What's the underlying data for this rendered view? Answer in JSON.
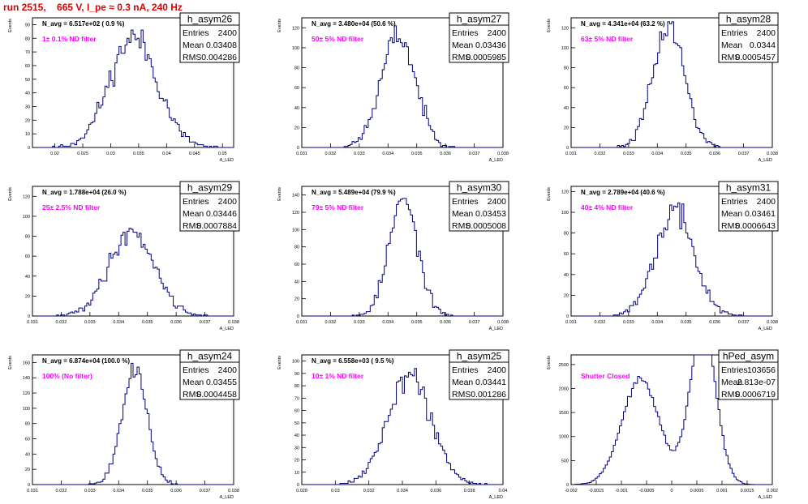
{
  "run_title": "run 2515,    665 V, I_pe ≈ 0.3 nA, 240 Hz",
  "ylabel": "Events",
  "colors": {
    "line": "#000080",
    "filter_label": "#ff00ff",
    "title": "#e00000"
  },
  "chart_data": [
    {
      "type": "histogram",
      "name": "h_asym26",
      "navg": "N_avg = 6.517e+02 ( 0.9 %)",
      "filter": "1± 0.1% ND filter",
      "stats": {
        "entries_label": "Entries",
        "entries": "2400",
        "mean_label": "Mean",
        "mean": "0.03408",
        "rms_label": "RMS",
        "rms": "0.004286"
      },
      "xlabel": "A_LED",
      "xlim": [
        0.016,
        0.052
      ],
      "xticks": [
        0.02,
        0.025,
        0.03,
        0.035,
        0.04,
        0.045,
        0.05
      ],
      "xticklabels": [
        "0.02",
        "0.025",
        "0.03",
        "0.035",
        "0.04",
        "0.045",
        "0.05"
      ],
      "ylim": [
        0,
        95
      ],
      "yticks": [
        0,
        10,
        20,
        30,
        40,
        50,
        60,
        70,
        80,
        90
      ],
      "yticklabels": [
        "0",
        "10",
        "20",
        "30",
        "40",
        "50",
        "60",
        "70",
        "80",
        "90"
      ],
      "mean_value": 0.03408,
      "rms_value": 0.004286,
      "entries_value": 2400,
      "peaks": [
        {
          "mu": 0.03408,
          "sigma": 0.004286,
          "w": 1
        }
      ],
      "nbins": 100,
      "seed": 11
    },
    {
      "type": "histogram",
      "name": "h_asym27",
      "navg": "N_avg = 3.480e+04 (50.6 %)",
      "filter": "50± 5% ND filter",
      "stats": {
        "entries_label": "Entries",
        "entries": "2400",
        "mean_label": "Mean",
        "mean": "0.03436",
        "rms_label": "RMS",
        "rms": "0.0005985"
      },
      "xlabel": "A_LED",
      "xlim": [
        0.031,
        0.038
      ],
      "xticks": [
        0.031,
        0.032,
        0.033,
        0.034,
        0.035,
        0.036,
        0.037,
        0.038
      ],
      "xticklabels": [
        "0.031",
        "0.032",
        "0.033",
        "0.034",
        "0.035",
        "0.036",
        "0.037",
        "0.038"
      ],
      "ylim": [
        0,
        130
      ],
      "yticks": [
        0,
        20,
        40,
        60,
        80,
        100,
        120
      ],
      "yticklabels": [
        "0",
        "20",
        "40",
        "60",
        "80",
        "100",
        "120"
      ],
      "mean_value": 0.03436,
      "rms_value": 0.0005985,
      "entries_value": 2400,
      "peaks": [
        {
          "mu": 0.03436,
          "sigma": 0.0005985,
          "w": 1
        }
      ],
      "nbins": 100,
      "seed": 23
    },
    {
      "type": "histogram",
      "name": "h_asym28",
      "navg": "N_avg = 4.341e+04 (63.2 %)",
      "filter": "63± 5% ND filter",
      "stats": {
        "entries_label": "Entries",
        "entries": "2400",
        "mean_label": "Mean",
        "mean": "0.0344",
        "rms_label": "RMS",
        "rms": "0.0005457"
      },
      "xlabel": "A_LED",
      "xlim": [
        0.031,
        0.038
      ],
      "xticks": [
        0.031,
        0.032,
        0.033,
        0.034,
        0.035,
        0.036,
        0.037,
        0.038
      ],
      "xticklabels": [
        "0.031",
        "0.032",
        "0.033",
        "0.034",
        "0.035",
        "0.036",
        "0.037",
        "0.038"
      ],
      "ylim": [
        0,
        130
      ],
      "yticks": [
        0,
        20,
        40,
        60,
        80,
        100,
        120
      ],
      "yticklabels": [
        "0",
        "20",
        "40",
        "60",
        "80",
        "100",
        "120"
      ],
      "mean_value": 0.0344,
      "rms_value": 0.0005457,
      "entries_value": 2400,
      "peaks": [
        {
          "mu": 0.0344,
          "sigma": 0.0005457,
          "w": 1
        }
      ],
      "nbins": 100,
      "seed": 37
    },
    {
      "type": "histogram",
      "name": "h_asym29",
      "navg": "N_avg = 1.788e+04 (26.0 %)",
      "filter": "25± 2.5% ND filter",
      "stats": {
        "entries_label": "Entries",
        "entries": "2400",
        "mean_label": "Mean",
        "mean": "0.03446",
        "rms_label": "RMS",
        "rms": "0.0007884"
      },
      "xlabel": "A_LED",
      "xlim": [
        0.031,
        0.038
      ],
      "xticks": [
        0.031,
        0.032,
        0.033,
        0.034,
        0.035,
        0.036,
        0.037,
        0.038
      ],
      "xticklabels": [
        "0.031",
        "0.032",
        "0.033",
        "0.034",
        "0.035",
        "0.036",
        "0.037",
        "0.038"
      ],
      "ylim": [
        0,
        130
      ],
      "yticks": [
        0,
        20,
        40,
        60,
        80,
        100,
        120
      ],
      "yticklabels": [
        "0",
        "20",
        "40",
        "60",
        "80",
        "100",
        "120"
      ],
      "mean_value": 0.03446,
      "rms_value": 0.0007884,
      "entries_value": 2400,
      "peaks": [
        {
          "mu": 0.03446,
          "sigma": 0.0007884,
          "w": 1
        }
      ],
      "nbins": 100,
      "seed": 41
    },
    {
      "type": "histogram",
      "name": "h_asym30",
      "navg": "N_avg = 5.489e+04 (79.9 %)",
      "filter": "79± 5% ND filter",
      "stats": {
        "entries_label": "Entries",
        "entries": "2400",
        "mean_label": "Mean",
        "mean": "0.03453",
        "rms_label": "RMS",
        "rms": "0.0005008"
      },
      "xlabel": "A_LED",
      "xlim": [
        0.031,
        0.038
      ],
      "xticks": [
        0.031,
        0.032,
        0.033,
        0.034,
        0.035,
        0.036,
        0.037,
        0.038
      ],
      "xticklabels": [
        "0.031",
        "0.032",
        "0.033",
        "0.034",
        "0.035",
        "0.036",
        "0.037",
        "0.038"
      ],
      "ylim": [
        0,
        150
      ],
      "yticks": [
        0,
        20,
        40,
        60,
        80,
        100,
        120,
        140
      ],
      "yticklabels": [
        "0",
        "20",
        "40",
        "60",
        "80",
        "100",
        "120",
        "140"
      ],
      "mean_value": 0.03453,
      "rms_value": 0.0005008,
      "entries_value": 2400,
      "peaks": [
        {
          "mu": 0.03453,
          "sigma": 0.0005008,
          "w": 1
        }
      ],
      "nbins": 100,
      "seed": 53
    },
    {
      "type": "histogram",
      "name": "h_asym31",
      "navg": "N_avg = 2.789e+04 (40.6 %)",
      "filter": "40± 4% ND filter",
      "stats": {
        "entries_label": "Entries",
        "entries": "2400",
        "mean_label": "Mean",
        "mean": "0.03461",
        "rms_label": "RMS",
        "rms": "0.0006643"
      },
      "xlabel": "A_LED",
      "xlim": [
        0.031,
        0.038
      ],
      "xticks": [
        0.031,
        0.032,
        0.033,
        0.034,
        0.035,
        0.036,
        0.037,
        0.038
      ],
      "xticklabels": [
        "0.031",
        "0.032",
        "0.033",
        "0.034",
        "0.035",
        "0.036",
        "0.037",
        "0.038"
      ],
      "ylim": [
        0,
        125
      ],
      "yticks": [
        0,
        20,
        40,
        60,
        80,
        100,
        120
      ],
      "yticklabels": [
        "0",
        "20",
        "40",
        "60",
        "80",
        "100",
        "120"
      ],
      "mean_value": 0.03461,
      "rms_value": 0.0006643,
      "entries_value": 2400,
      "peaks": [
        {
          "mu": 0.03461,
          "sigma": 0.0006643,
          "w": 1
        }
      ],
      "nbins": 100,
      "seed": 67
    },
    {
      "type": "histogram",
      "name": "h_asym24",
      "navg": "N_avg = 6.874e+04 (100.0 %)",
      "filter": "100% (No filter)",
      "stats": {
        "entries_label": "Entries",
        "entries": "2400",
        "mean_label": "Mean",
        "mean": "0.03455",
        "rms_label": "RMS",
        "rms": "0.0004458"
      },
      "xlabel": "A_LED",
      "xlim": [
        0.031,
        0.038
      ],
      "xticks": [
        0.031,
        0.032,
        0.033,
        0.034,
        0.035,
        0.036,
        0.037,
        0.038
      ],
      "xticklabels": [
        "0.031",
        "0.032",
        "0.033",
        "0.034",
        "0.035",
        "0.036",
        "0.037",
        "0.038"
      ],
      "ylim": [
        0,
        170
      ],
      "yticks": [
        0,
        20,
        40,
        60,
        80,
        100,
        120,
        140,
        160
      ],
      "yticklabels": [
        "0",
        "20",
        "40",
        "60",
        "80",
        "100",
        "120",
        "140",
        "160"
      ],
      "mean_value": 0.03455,
      "rms_value": 0.0004458,
      "entries_value": 2400,
      "peaks": [
        {
          "mu": 0.03455,
          "sigma": 0.0004458,
          "w": 1
        }
      ],
      "nbins": 100,
      "seed": 79
    },
    {
      "type": "histogram",
      "name": "h_asym25",
      "navg": "N_avg = 6.558e+03 ( 9.5 %)",
      "filter": "10± 1% ND filter",
      "stats": {
        "entries_label": "Entries",
        "entries": "2400",
        "mean_label": "Mean",
        "mean": "0.03441",
        "rms_label": "RMS",
        "rms": "0.001286"
      },
      "xlabel": "A_LED",
      "xlim": [
        0.028,
        0.04
      ],
      "xticks": [
        0.028,
        0.03,
        0.032,
        0.034,
        0.036,
        0.038,
        0.04
      ],
      "xticklabels": [
        "0.028",
        "0.03",
        "0.032",
        "0.034",
        "0.036",
        "0.038",
        "0.04"
      ],
      "ylim": [
        0,
        105
      ],
      "yticks": [
        0,
        10,
        20,
        30,
        40,
        50,
        60,
        70,
        80,
        90,
        100
      ],
      "yticklabels": [
        "0",
        "10",
        "20",
        "30",
        "40",
        "50",
        "60",
        "70",
        "80",
        "90",
        "100"
      ],
      "mean_value": 0.03441,
      "rms_value": 0.001286,
      "entries_value": 2400,
      "peaks": [
        {
          "mu": 0.03441,
          "sigma": 0.001286,
          "w": 1
        }
      ],
      "nbins": 100,
      "seed": 89
    },
    {
      "type": "histogram",
      "name": "hPed_asym",
      "navg": "",
      "filter": "Shutter Closed",
      "stats": {
        "entries_label": "Entries",
        "entries": "103656",
        "mean_label": "Mean",
        "mean": "2.813e-07",
        "rms_label": "RMS",
        "rms": "0.0006719"
      },
      "xlabel": "A_LED",
      "xlim": [
        -0.002,
        0.002
      ],
      "xticks": [
        -0.002,
        -0.0015,
        -0.001,
        -0.0005,
        0,
        0.0005,
        0.001,
        0.0015,
        0.002
      ],
      "xticklabels": [
        "-0.002",
        "-0.0015",
        "-0.001",
        "-0.0005",
        "0",
        "0.0005",
        "0.001",
        "0.0015",
        "0.002"
      ],
      "ylim": [
        0,
        2700
      ],
      "yticks": [
        0,
        500,
        1000,
        1500,
        2000,
        2500
      ],
      "yticklabels": [
        "0",
        "500",
        "1000",
        "1500",
        "2000",
        "2500"
      ],
      "mean_value": 0.0,
      "rms_value": 0.0006719,
      "entries_value": 103656,
      "peaks": [
        {
          "mu": -0.00062,
          "sigma": 0.00037,
          "w": 0.49
        },
        {
          "mu": 0.00062,
          "sigma": 0.00026,
          "w": 0.51
        }
      ],
      "nbins": 100,
      "seed": 97
    }
  ]
}
